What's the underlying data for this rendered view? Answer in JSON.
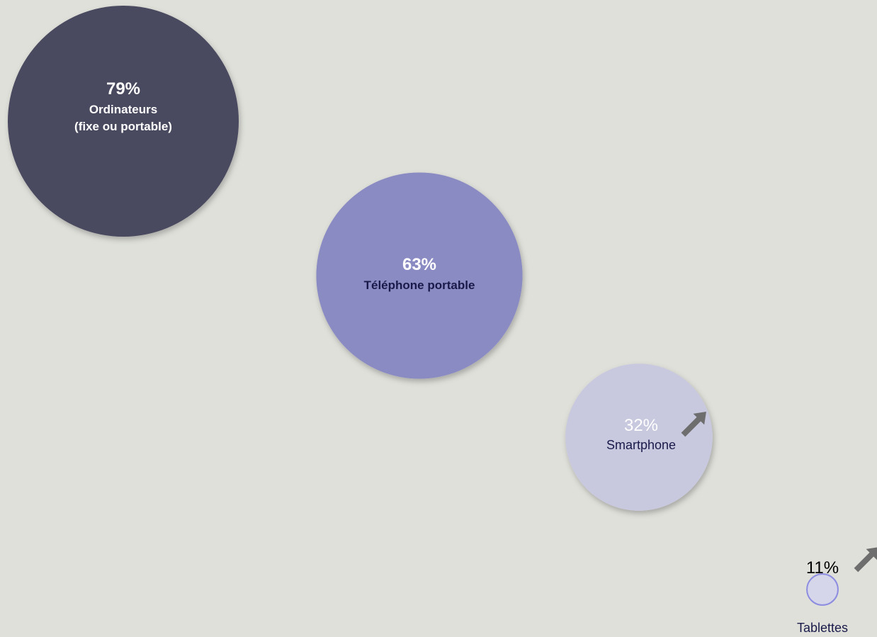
{
  "chart_data": {
    "type": "bubble",
    "title": "",
    "xlabel": "",
    "ylabel": "",
    "grid": false,
    "legend": "none",
    "points": [
      {
        "percent": "79%",
        "value": 79,
        "label_lines": [
          "Ordinateurs",
          "(fixe ou portable)"
        ],
        "color": "#4a4a5e",
        "percent_color": "#ffffff",
        "label_color": "#ffffff",
        "trend": "none"
      },
      {
        "percent": "63%",
        "value": 63,
        "label_lines": [
          "Téléphone portable"
        ],
        "color": "#8b8bc4",
        "percent_color": "#ffffff",
        "label_color": "#1a1a4a",
        "trend": "none"
      },
      {
        "percent": "32%",
        "value": 32,
        "label_lines": [
          "Smartphone"
        ],
        "color": "#c8c8df",
        "percent_color": "#ffffff",
        "label_color": "#1a1a4a",
        "trend": "up"
      },
      {
        "percent": "11%",
        "value": 11,
        "label_lines": [
          "Tablettes"
        ],
        "color": "#d6d6ea",
        "percent_color": "#000000",
        "label_color": "#1a1a4a",
        "trend": "up"
      }
    ]
  }
}
